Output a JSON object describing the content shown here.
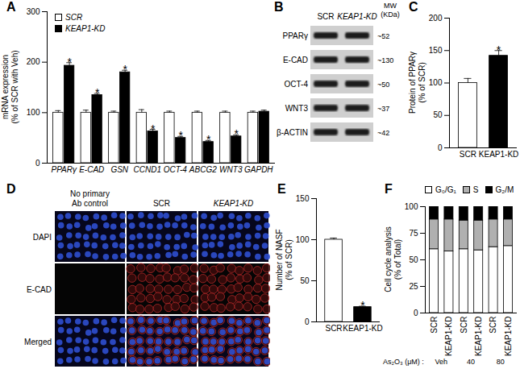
{
  "chart_data": [
    {
      "type": "bar",
      "title": "A",
      "y_label": "mRNA expression (% of SCR with Veh)",
      "categories": [
        "PPARγ",
        "E-CAD",
        "GSN",
        "CCND1",
        "OCT-4",
        "ABCG2",
        "WNT3",
        "GAPDH"
      ],
      "series": [
        {
          "name": "SCR",
          "color": "#ffffff",
          "values": [
            100,
            100,
            100,
            100,
            100,
            100,
            100,
            100
          ],
          "errors": [
            4,
            5,
            3,
            6,
            3,
            3,
            3,
            3
          ]
        },
        {
          "name": "KEAP1-KD",
          "color": "#000000",
          "values": [
            193,
            135,
            180,
            63,
            50,
            42,
            53,
            102
          ],
          "errors": [
            6,
            3,
            4,
            4,
            3,
            3,
            3,
            3
          ],
          "annotations": [
            "*",
            "*",
            "*",
            "*",
            "*",
            "*",
            "*",
            null
          ]
        }
      ],
      "ylim": [
        0,
        300
      ],
      "yticks": [
        0,
        100,
        200,
        300
      ],
      "grid": false,
      "legend": "top-left"
    },
    {
      "type": "blot",
      "title": "B",
      "columns": [
        "SCR",
        "KEAP1-KD"
      ],
      "mw_label": "MW (KDa)",
      "rows": [
        {
          "label": "PPARγ",
          "mw": "~52"
        },
        {
          "label": "E-CAD",
          "mw": "~130"
        },
        {
          "label": "OCT-4",
          "mw": "~50"
        },
        {
          "label": "WNT3",
          "mw": "~37"
        },
        {
          "label": "β-ACTIN",
          "mw": "~42"
        }
      ]
    },
    {
      "type": "bar",
      "title": "C",
      "y_label": "Protein of PPARγ (% of SCR)",
      "categories": [
        "SCR",
        "KEAP1-KD"
      ],
      "values": [
        100,
        142
      ],
      "errors": [
        7,
        8
      ],
      "annotations": [
        null,
        "*"
      ],
      "colors": [
        "#ffffff",
        "#000000"
      ],
      "ylim": [
        0,
        200
      ],
      "yticks": [
        0,
        50,
        100,
        150,
        200
      ],
      "grid": false
    },
    {
      "type": "image",
      "title": "D",
      "columns": [
        "No primary Ab control",
        "SCR",
        "KEAP1-KD"
      ],
      "rows": [
        "DAPI",
        "E-CAD",
        "Merged"
      ]
    },
    {
      "type": "bar",
      "title": "E",
      "y_label": "Number of NASF (% of SCR)",
      "categories": [
        "SCR",
        "KEAP1-KD"
      ],
      "values": [
        100,
        18
      ],
      "errors": [
        2,
        1
      ],
      "annotations": [
        null,
        "*"
      ],
      "colors": [
        "#ffffff",
        "#000000"
      ],
      "ylim": [
        0,
        150
      ],
      "yticks": [
        0,
        50,
        100,
        150
      ],
      "grid": false
    },
    {
      "type": "bar",
      "stacked": true,
      "title": "F",
      "y_label": "Cell cycle analysis (% of Total)",
      "categories": [
        "SCR",
        "KEAP1-KD",
        "SCR",
        "KEAP1-KD",
        "SCR",
        "KEAP1-KD"
      ],
      "group_label": "As₂O₃ (μM) :",
      "groups": [
        "Veh",
        "40",
        "80"
      ],
      "series": [
        {
          "name": "G₀/G₁",
          "color": "#ffffff",
          "values": [
            60,
            58,
            60,
            59,
            62,
            63
          ]
        },
        {
          "name": "S",
          "color": "#b0b0b0",
          "values": [
            28,
            30,
            27,
            28,
            26,
            25
          ]
        },
        {
          "name": "G₂/M",
          "color": "#000000",
          "values": [
            12,
            12,
            13,
            13,
            12,
            12
          ]
        }
      ],
      "ylim": [
        0,
        100
      ],
      "yticks": [
        0,
        25,
        50,
        75,
        100
      ],
      "grid": false,
      "legend": "top"
    }
  ]
}
